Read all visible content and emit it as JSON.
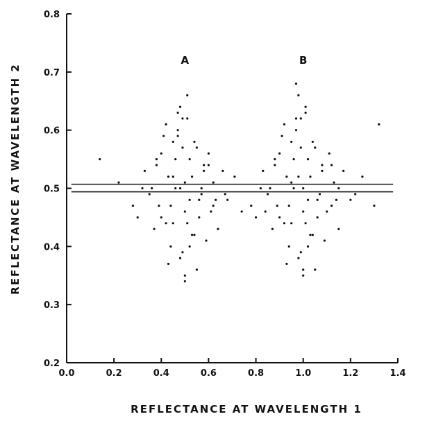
{
  "chart_data": {
    "type": "scatter",
    "title": "",
    "xlabel": "REFLECTANCE AT WAVELENGTH 1",
    "ylabel": "REFLECTANCE AT WAVELENGTH 2",
    "xlim": [
      0.0,
      1.4
    ],
    "ylim": [
      0.2,
      0.8
    ],
    "x_ticks": [
      "0.0",
      "0.2",
      "0.4",
      "0.6",
      "0.8",
      "1.0",
      "1.2",
      "1.4"
    ],
    "y_ticks": [
      "0.2",
      "0.3",
      "0.4",
      "0.5",
      "0.6",
      "0.7",
      "0.8"
    ],
    "grid": false,
    "annotations": [
      {
        "text": "A",
        "x": 0.5,
        "y": 0.72
      },
      {
        "text": "B",
        "x": 1.0,
        "y": 0.72
      }
    ],
    "horizontal_lines": [
      0.494,
      0.507
    ],
    "series": [
      {
        "cluster": "A",
        "x": [
          0.45,
          0.52,
          0.38,
          0.61,
          0.48,
          0.55,
          0.42,
          0.5,
          0.58,
          0.35,
          0.47,
          0.53,
          0.44,
          0.6,
          0.49,
          0.4,
          0.56,
          0.51,
          0.46,
          0.63,
          0.37,
          0.54,
          0.43,
          0.59,
          0.5,
          0.32,
          0.66,
          0.48,
          0.41,
          0.57,
          0.52,
          0.45,
          0.62,
          0.39,
          0.55,
          0.47,
          0.53,
          0.3,
          0.68,
          0.49,
          0.44,
          0.58,
          0.51,
          0.36,
          0.64,
          0.46,
          0.5,
          0.42,
          0.56,
          0.54,
          0.28,
          0.71,
          0.48,
          0.4,
          0.6,
          0.52,
          0.45,
          0.33,
          0.67,
          0.5,
          0.22,
          0.14,
          0.74,
          0.51,
          0.47,
          0.43,
          0.57,
          0.38,
          0.62,
          0.49
        ],
        "y": [
          0.52,
          0.48,
          0.55,
          0.46,
          0.5,
          0.57,
          0.44,
          0.51,
          0.53,
          0.49,
          0.6,
          0.42,
          0.47,
          0.54,
          0.39,
          0.56,
          0.45,
          0.62,
          0.5,
          0.48,
          0.43,
          0.58,
          0.52,
          0.41,
          0.46,
          0.5,
          0.53,
          0.38,
          0.59,
          0.49,
          0.55,
          0.44,
          0.51,
          0.47,
          0.36,
          0.63,
          0.52,
          0.45,
          0.48,
          0.57,
          0.4,
          0.54,
          0.66,
          0.5,
          0.43,
          0.55,
          0.34,
          0.61,
          0.48,
          0.42,
          0.47,
          0.52,
          0.64,
          0.45,
          0.56,
          0.4,
          0.58,
          0.53,
          0.49,
          0.35,
          0.51,
          0.55,
          0.46,
          0.44,
          0.59,
          0.37,
          0.5,
          0.54,
          0.47,
          0.62
        ]
      },
      {
        "cluster": "B",
        "x": [
          0.95,
          1.02,
          0.88,
          1.1,
          0.98,
          1.05,
          0.92,
          1.0,
          1.08,
          0.85,
          0.97,
          1.03,
          0.94,
          1.12,
          0.99,
          0.9,
          1.06,
          1.01,
          0.96,
          1.14,
          0.87,
          1.04,
          0.93,
          1.09,
          1.0,
          0.82,
          1.17,
          0.98,
          0.91,
          1.07,
          1.02,
          0.95,
          1.13,
          0.89,
          1.05,
          0.97,
          1.03,
          0.8,
          1.2,
          0.99,
          0.94,
          1.08,
          1.01,
          0.86,
          1.15,
          0.96,
          1.0,
          0.92,
          1.06,
          1.04,
          0.78,
          1.25,
          0.98,
          0.9,
          1.11,
          1.02,
          0.95,
          0.83,
          1.22,
          1.0,
          1.3,
          1.32,
          0.84,
          1.01,
          0.97,
          0.93,
          1.15,
          0.88,
          1.12,
          0.99
        ],
        "y": [
          0.51,
          0.48,
          0.55,
          0.46,
          0.52,
          0.57,
          0.44,
          0.5,
          0.53,
          0.49,
          0.6,
          0.42,
          0.47,
          0.54,
          0.39,
          0.56,
          0.45,
          0.63,
          0.5,
          0.48,
          0.43,
          0.58,
          0.52,
          0.41,
          0.46,
          0.5,
          0.53,
          0.38,
          0.59,
          0.49,
          0.55,
          0.44,
          0.51,
          0.47,
          0.36,
          0.62,
          0.52,
          0.45,
          0.48,
          0.57,
          0.4,
          0.54,
          0.64,
          0.5,
          0.43,
          0.55,
          0.35,
          0.61,
          0.48,
          0.42,
          0.47,
          0.52,
          0.66,
          0.45,
          0.56,
          0.4,
          0.58,
          0.53,
          0.49,
          0.36,
          0.47,
          0.61,
          0.46,
          0.44,
          0.68,
          0.37,
          0.5,
          0.54,
          0.47,
          0.62
        ]
      }
    ]
  },
  "colors": {
    "ink": "#111111",
    "background": "#ffffff"
  }
}
